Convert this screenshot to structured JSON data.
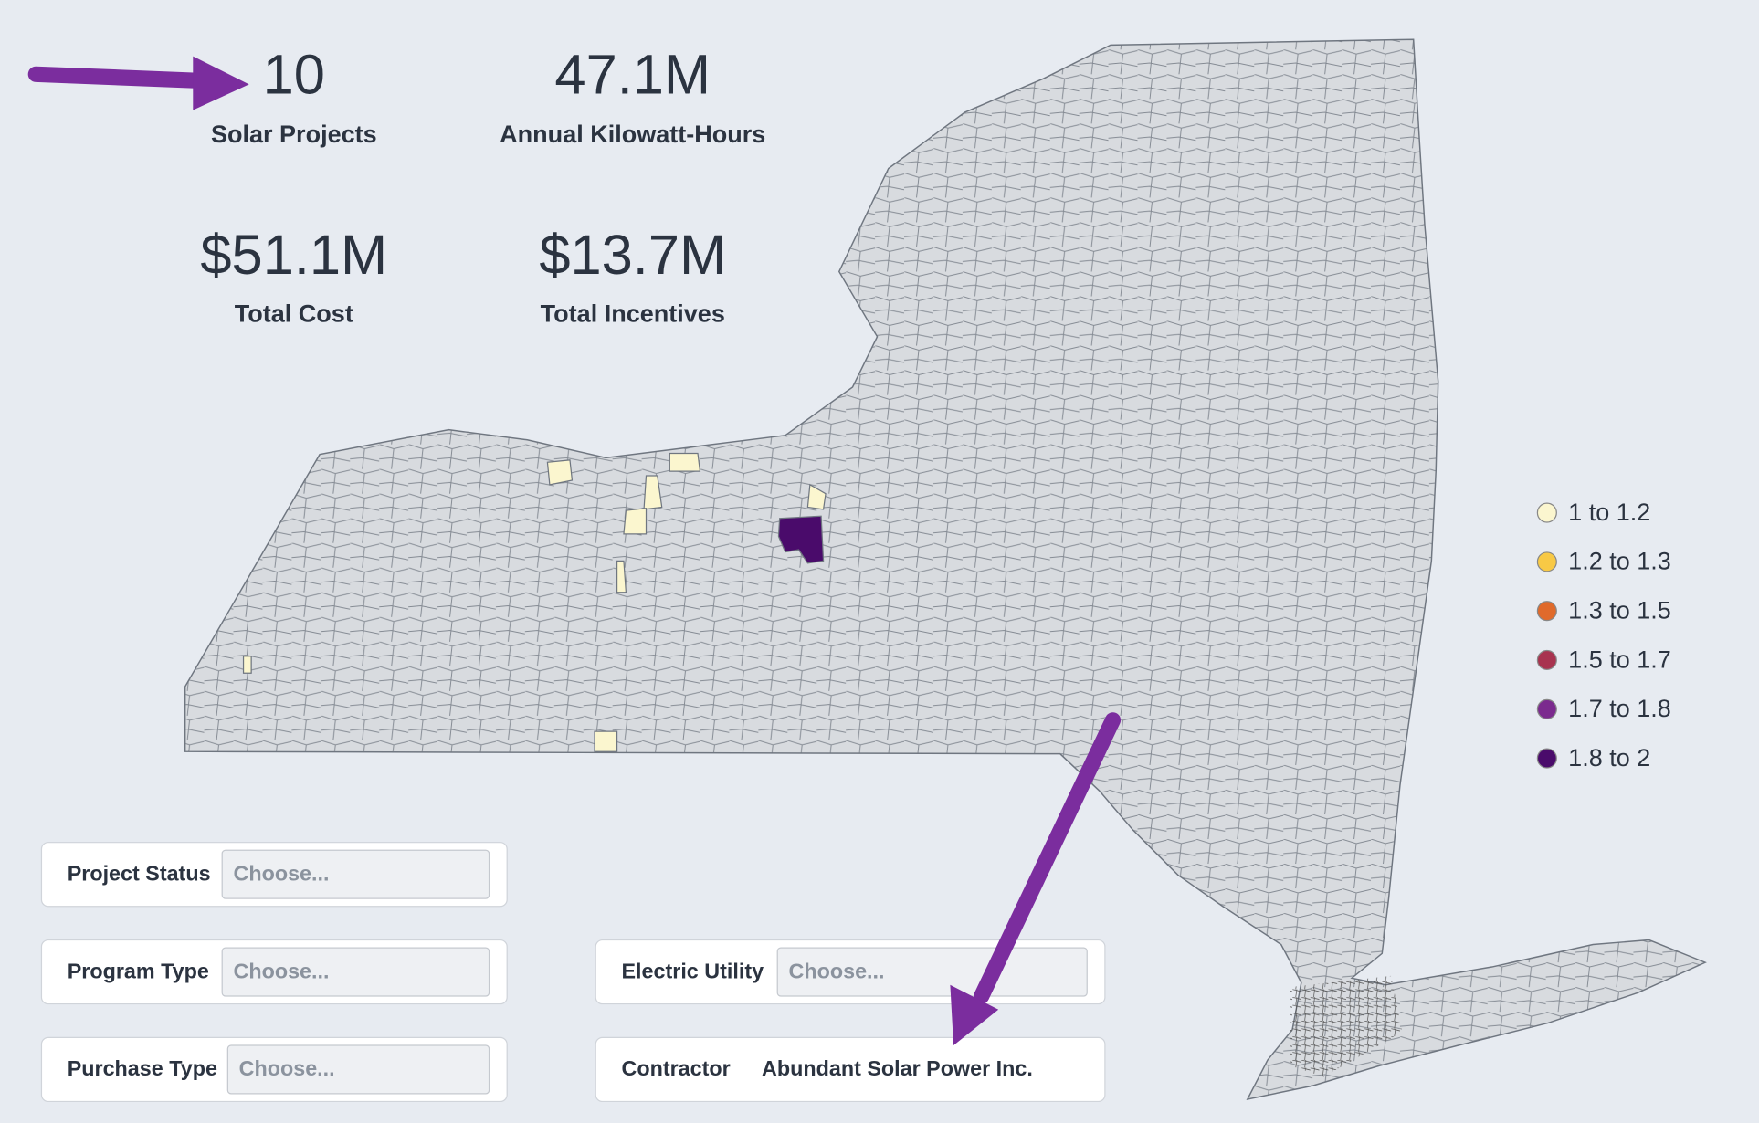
{
  "kpis": [
    {
      "value": "10",
      "label": "Solar Projects"
    },
    {
      "value": "47.1M",
      "label": "Annual Kilowatt-Hours"
    },
    {
      "value": "$51.1M",
      "label": "Total Cost"
    },
    {
      "value": "$13.7M",
      "label": "Total Incentives"
    }
  ],
  "legend": {
    "items": [
      {
        "label": "1 to 1.2",
        "color": "#fbf6cf"
      },
      {
        "label": "1.2 to 1.3",
        "color": "#f8c945"
      },
      {
        "label": "1.3 to 1.5",
        "color": "#e06a2b"
      },
      {
        "label": "1.5 to 1.7",
        "color": "#a8334f"
      },
      {
        "label": "1.7 to 1.8",
        "color": "#7b2a8e"
      },
      {
        "label": "1.8 to 2",
        "color": "#4a0b6b"
      }
    ]
  },
  "filters": [
    {
      "label": "Project Status",
      "placeholder": "Choose..."
    },
    {
      "label": "Program Type",
      "placeholder": "Choose..."
    },
    {
      "label": "Purchase Type",
      "placeholder": "Choose..."
    },
    {
      "label": "Electric Utility",
      "placeholder": "Choose..."
    },
    {
      "label": "Contractor",
      "value": "Abundant Solar Power Inc."
    }
  ]
}
